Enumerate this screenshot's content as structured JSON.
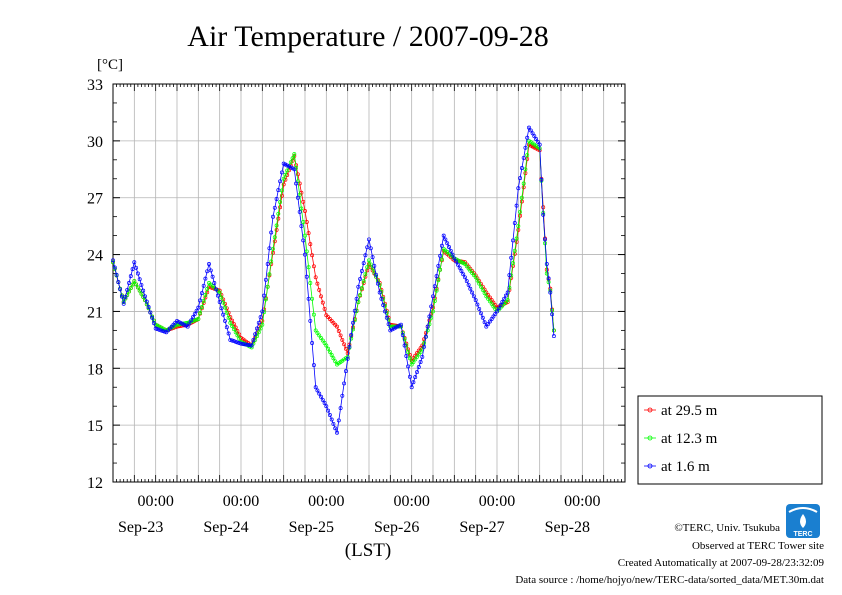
{
  "chart_data": {
    "type": "line",
    "title": "Air Temperature / 2007-09-28",
    "ylabel": "[°C]",
    "xlabel": "(LST)",
    "ylim": [
      12,
      33
    ],
    "yticks": [
      "12",
      "15",
      "18",
      "21",
      "24",
      "27",
      "30",
      "33"
    ],
    "x_start": "2007-09-22 12:00",
    "x_end": "2007-09-28 12:00",
    "xtick_time": "00:00",
    "xtick_dates": [
      "Sep-23",
      "Sep-24",
      "Sep-25",
      "Sep-26",
      "Sep-27",
      "Sep-28"
    ],
    "grid": true,
    "legend_position": "right",
    "series": [
      {
        "name": "at 29.5 m",
        "color": "#ff0000",
        "points": [
          [
            "2007-09-22 12:00",
            23.6
          ],
          [
            "2007-09-22 15:00",
            21.5
          ],
          [
            "2007-09-22 18:00",
            22.6
          ],
          [
            "2007-09-22 21:00",
            21.6
          ],
          [
            "2007-09-23 00:00",
            20.3
          ],
          [
            "2007-09-23 03:00",
            20.0
          ],
          [
            "2007-09-23 06:00",
            20.2
          ],
          [
            "2007-09-23 09:00",
            20.3
          ],
          [
            "2007-09-23 12:00",
            20.6
          ],
          [
            "2007-09-23 15:00",
            22.3
          ],
          [
            "2007-09-23 18:00",
            22.1
          ],
          [
            "2007-09-23 21:00",
            20.7
          ],
          [
            "2007-09-24 00:00",
            19.6
          ],
          [
            "2007-09-24 03:00",
            19.2
          ],
          [
            "2007-09-24 06:00",
            20.5
          ],
          [
            "2007-09-24 09:00",
            24.1
          ],
          [
            "2007-09-24 12:00",
            27.7
          ],
          [
            "2007-09-24 15:00",
            29.2
          ],
          [
            "2007-09-24 18:00",
            26.3
          ],
          [
            "2007-09-24 21:00",
            22.8
          ],
          [
            "2007-09-25 00:00",
            20.8
          ],
          [
            "2007-09-25 03:00",
            20.2
          ],
          [
            "2007-09-25 06:00",
            18.8
          ],
          [
            "2007-09-25 09:00",
            21.5
          ],
          [
            "2007-09-25 12:00",
            23.5
          ],
          [
            "2007-09-25 15:00",
            22.5
          ],
          [
            "2007-09-25 18:00",
            20.3
          ],
          [
            "2007-09-25 21:00",
            20.2
          ],
          [
            "2007-09-26 00:00",
            18.4
          ],
          [
            "2007-09-26 03:00",
            19.2
          ],
          [
            "2007-09-26 06:00",
            21.2
          ],
          [
            "2007-09-26 09:00",
            24.2
          ],
          [
            "2007-09-26 12:00",
            23.7
          ],
          [
            "2007-09-26 15:00",
            23.6
          ],
          [
            "2007-09-26 18:00",
            22.9
          ],
          [
            "2007-09-26 21:00",
            22.0
          ],
          [
            "2007-09-27 00:00",
            21.2
          ],
          [
            "2007-09-27 03:00",
            21.5
          ],
          [
            "2007-09-27 06:00",
            25.3
          ],
          [
            "2007-09-27 09:00",
            29.8
          ],
          [
            "2007-09-27 12:00",
            29.5
          ],
          [
            "2007-09-27 13:00",
            26.5
          ],
          [
            "2007-09-27 14:00",
            23.2
          ],
          [
            "2007-09-27 15:00",
            22.2
          ],
          [
            "2007-09-27 16:00",
            20.0
          ]
        ]
      },
      {
        "name": "at 12.3 m",
        "color": "#00ff00",
        "points": [
          [
            "2007-09-22 12:00",
            23.6
          ],
          [
            "2007-09-22 15:00",
            21.5
          ],
          [
            "2007-09-22 18:00",
            22.6
          ],
          [
            "2007-09-22 21:00",
            21.6
          ],
          [
            "2007-09-23 00:00",
            20.3
          ],
          [
            "2007-09-23 03:00",
            20.0
          ],
          [
            "2007-09-23 06:00",
            20.3
          ],
          [
            "2007-09-23 09:00",
            20.4
          ],
          [
            "2007-09-23 12:00",
            20.6
          ],
          [
            "2007-09-23 15:00",
            22.5
          ],
          [
            "2007-09-23 18:00",
            22.0
          ],
          [
            "2007-09-23 21:00",
            20.4
          ],
          [
            "2007-09-24 00:00",
            19.4
          ],
          [
            "2007-09-24 03:00",
            19.1
          ],
          [
            "2007-09-24 06:00",
            20.3
          ],
          [
            "2007-09-24 09:00",
            24.3
          ],
          [
            "2007-09-24 12:00",
            28.0
          ],
          [
            "2007-09-24 15:00",
            29.3
          ],
          [
            "2007-09-24 18:00",
            25.0
          ],
          [
            "2007-09-24 21:00",
            20.0
          ],
          [
            "2007-09-25 00:00",
            19.2
          ],
          [
            "2007-09-25 03:00",
            18.2
          ],
          [
            "2007-09-25 06:00",
            18.6
          ],
          [
            "2007-09-25 09:00",
            21.5
          ],
          [
            "2007-09-25 12:00",
            23.7
          ],
          [
            "2007-09-25 15:00",
            22.4
          ],
          [
            "2007-09-25 18:00",
            20.2
          ],
          [
            "2007-09-25 21:00",
            20.2
          ],
          [
            "2007-09-26 00:00",
            18.2
          ],
          [
            "2007-09-26 03:00",
            19.0
          ],
          [
            "2007-09-26 06:00",
            21.0
          ],
          [
            "2007-09-26 09:00",
            24.3
          ],
          [
            "2007-09-26 12:00",
            23.8
          ],
          [
            "2007-09-26 15:00",
            23.5
          ],
          [
            "2007-09-26 18:00",
            22.8
          ],
          [
            "2007-09-26 21:00",
            21.8
          ],
          [
            "2007-09-27 00:00",
            21.0
          ],
          [
            "2007-09-27 03:00",
            21.6
          ],
          [
            "2007-09-27 06:00",
            25.5
          ],
          [
            "2007-09-27 09:00",
            30.0
          ],
          [
            "2007-09-27 12:00",
            29.6
          ],
          [
            "2007-09-27 13:00",
            26.2
          ],
          [
            "2007-09-27 14:00",
            23.0
          ],
          [
            "2007-09-27 15:00",
            22.1
          ],
          [
            "2007-09-27 16:00",
            20.0
          ]
        ]
      },
      {
        "name": "at 1.6 m",
        "color": "#0000ff",
        "points": [
          [
            "2007-09-22 12:00",
            23.7
          ],
          [
            "2007-09-22 15:00",
            21.4
          ],
          [
            "2007-09-22 18:00",
            23.6
          ],
          [
            "2007-09-22 21:00",
            21.8
          ],
          [
            "2007-09-23 00:00",
            20.1
          ],
          [
            "2007-09-23 03:00",
            19.9
          ],
          [
            "2007-09-23 06:00",
            20.5
          ],
          [
            "2007-09-23 09:00",
            20.2
          ],
          [
            "2007-09-23 12:00",
            21.2
          ],
          [
            "2007-09-23 15:00",
            23.5
          ],
          [
            "2007-09-23 18:00",
            21.5
          ],
          [
            "2007-09-23 21:00",
            19.5
          ],
          [
            "2007-09-24 00:00",
            19.3
          ],
          [
            "2007-09-24 03:00",
            19.2
          ],
          [
            "2007-09-24 06:00",
            21.0
          ],
          [
            "2007-09-24 09:00",
            26.0
          ],
          [
            "2007-09-24 12:00",
            28.8
          ],
          [
            "2007-09-24 15:00",
            28.5
          ],
          [
            "2007-09-24 18:00",
            24.0
          ],
          [
            "2007-09-24 21:00",
            17.0
          ],
          [
            "2007-09-25 00:00",
            16.0
          ],
          [
            "2007-09-25 03:00",
            14.6
          ],
          [
            "2007-09-25 06:00",
            18.5
          ],
          [
            "2007-09-25 09:00",
            22.3
          ],
          [
            "2007-09-25 12:00",
            24.8
          ],
          [
            "2007-09-25 15:00",
            22.0
          ],
          [
            "2007-09-25 18:00",
            20.0
          ],
          [
            "2007-09-25 21:00",
            20.3
          ],
          [
            "2007-09-26 00:00",
            17.0
          ],
          [
            "2007-09-26 03:00",
            18.6
          ],
          [
            "2007-09-26 06:00",
            21.8
          ],
          [
            "2007-09-26 09:00",
            25.0
          ],
          [
            "2007-09-26 12:00",
            23.8
          ],
          [
            "2007-09-26 15:00",
            22.8
          ],
          [
            "2007-09-26 18:00",
            21.6
          ],
          [
            "2007-09-26 21:00",
            20.2
          ],
          [
            "2007-09-27 00:00",
            21.0
          ],
          [
            "2007-09-27 03:00",
            22.0
          ],
          [
            "2007-09-27 06:00",
            27.5
          ],
          [
            "2007-09-27 09:00",
            30.7
          ],
          [
            "2007-09-27 12:00",
            29.8
          ],
          [
            "2007-09-27 13:00",
            26.1
          ],
          [
            "2007-09-27 14:00",
            23.5
          ],
          [
            "2007-09-27 15:00",
            22.0
          ],
          [
            "2007-09-27 16:00",
            19.7
          ]
        ]
      }
    ]
  },
  "footer": {
    "copyright": "©TERC, Univ. Tsukuba",
    "observed": "Observed at TERC Tower site",
    "created": "Created Automatically at 2007-09-28/23:32:09",
    "source": "Data source : /home/hojyo/new/TERC-data/sorted_data/MET.30m.dat"
  },
  "logo": {
    "text": "TERC",
    "color": "#1a7fd0"
  }
}
